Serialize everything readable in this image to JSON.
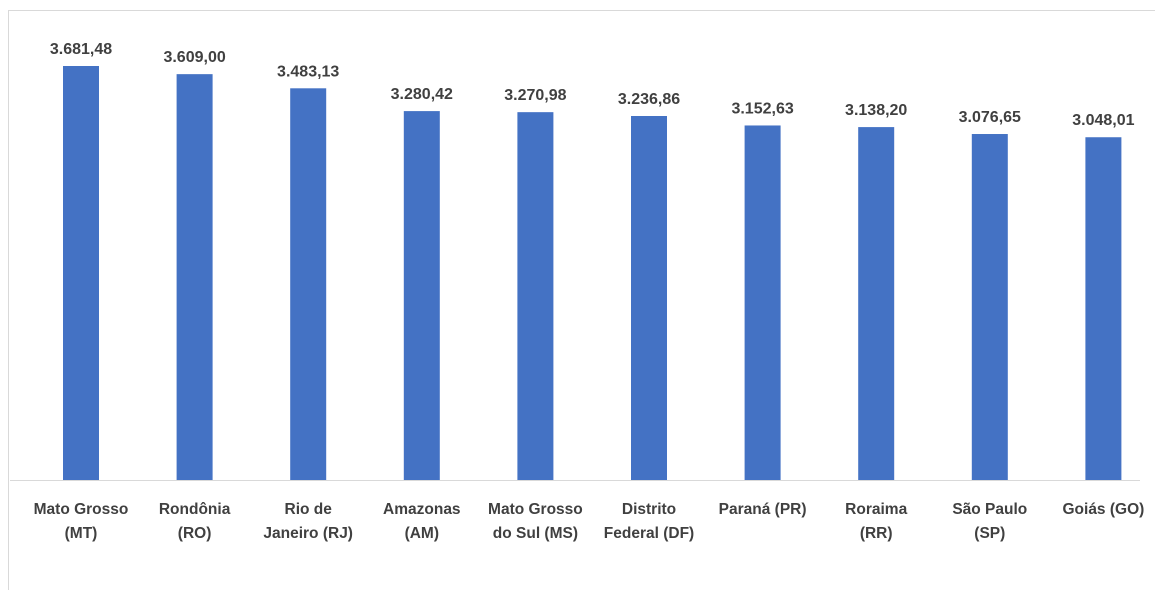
{
  "chart_data": {
    "type": "bar",
    "title": "",
    "xlabel": "",
    "ylabel": "",
    "categories": [
      [
        "Mato Grosso",
        "(MT)"
      ],
      [
        "Rondônia",
        "(RO)"
      ],
      [
        "Rio de",
        "Janeiro (RJ)"
      ],
      [
        "Amazonas",
        "(AM)"
      ],
      [
        "Mato Grosso",
        "do Sul (MS)"
      ],
      [
        "Distrito",
        "Federal (DF)"
      ],
      [
        "Paraná (PR)"
      ],
      [
        "Roraima",
        "(RR)"
      ],
      [
        "São Paulo",
        "(SP)"
      ],
      [
        "Goiás (GO)"
      ]
    ],
    "values": [
      3681.48,
      3609.0,
      3483.13,
      3280.42,
      3270.98,
      3236.86,
      3152.63,
      3138.2,
      3076.65,
      3048.01
    ],
    "value_labels": [
      "3.681,48",
      "3.609,00",
      "3.483,13",
      "3.280,42",
      "3.270,98",
      "3.236,86",
      "3.152,63",
      "3.138,20",
      "3.076,65",
      "3.048,01"
    ],
    "ylim": [
      0,
      4000
    ],
    "grid": false,
    "legend": "none",
    "bar_color": "#4472c4",
    "axis_color": "#d9d9d9",
    "text_color": "#404040"
  }
}
